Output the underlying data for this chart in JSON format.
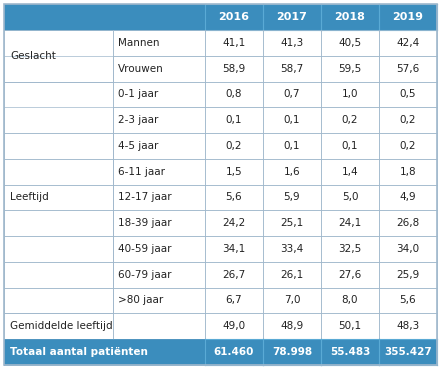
{
  "header_bg": "#3b8dbd",
  "header_text_color": "#ffffff",
  "footer_bg": "#3b8dbd",
  "footer_text_color": "#ffffff",
  "border_color": "#a0b8cc",
  "text_color": "#222222",
  "years": [
    "2016",
    "2017",
    "2018",
    "2019"
  ],
  "rows": [
    {
      "group": "Geslacht",
      "sub": "Mannen",
      "values": [
        "41,1",
        "41,3",
        "40,5",
        "42,4"
      ]
    },
    {
      "group": "",
      "sub": "Vrouwen",
      "values": [
        "58,9",
        "58,7",
        "59,5",
        "57,6"
      ]
    },
    {
      "group": "Leeftijd",
      "sub": "0-1 jaar",
      "values": [
        "0,8",
        "0,7",
        "1,0",
        "0,5"
      ]
    },
    {
      "group": "",
      "sub": "2-3 jaar",
      "values": [
        "0,1",
        "0,1",
        "0,2",
        "0,2"
      ]
    },
    {
      "group": "",
      "sub": "4-5 jaar",
      "values": [
        "0,2",
        "0,1",
        "0,1",
        "0,2"
      ]
    },
    {
      "group": "",
      "sub": "6-11 jaar",
      "values": [
        "1,5",
        "1,6",
        "1,4",
        "1,8"
      ]
    },
    {
      "group": "",
      "sub": "12-17 jaar",
      "values": [
        "5,6",
        "5,9",
        "5,0",
        "4,9"
      ]
    },
    {
      "group": "",
      "sub": "18-39 jaar",
      "values": [
        "24,2",
        "25,1",
        "24,1",
        "26,8"
      ]
    },
    {
      "group": "",
      "sub": "40-59 jaar",
      "values": [
        "34,1",
        "33,4",
        "32,5",
        "34,0"
      ]
    },
    {
      "group": "",
      "sub": "60-79 jaar",
      "values": [
        "26,7",
        "26,1",
        "27,6",
        "25,9"
      ]
    },
    {
      "group": "",
      "sub": ">80 jaar",
      "values": [
        "6,7",
        "7,0",
        "8,0",
        "5,6"
      ]
    },
    {
      "group": "Gemiddelde leeftijd",
      "sub": "",
      "values": [
        "49,0",
        "48,9",
        "50,1",
        "48,3"
      ]
    }
  ],
  "footer_row": {
    "label": "Totaal aantal patiënten",
    "values": [
      "61.460",
      "78.998",
      "55.483",
      "355.427"
    ]
  },
  "group_spans": {
    "Geslacht": [
      0,
      1
    ],
    "Leeftijd": [
      2,
      10
    ],
    "Gemiddelde leeftijd": [
      11,
      11
    ]
  },
  "fontsize_body": 7.5,
  "fontsize_header": 8.0,
  "fontsize_footer": 7.5
}
